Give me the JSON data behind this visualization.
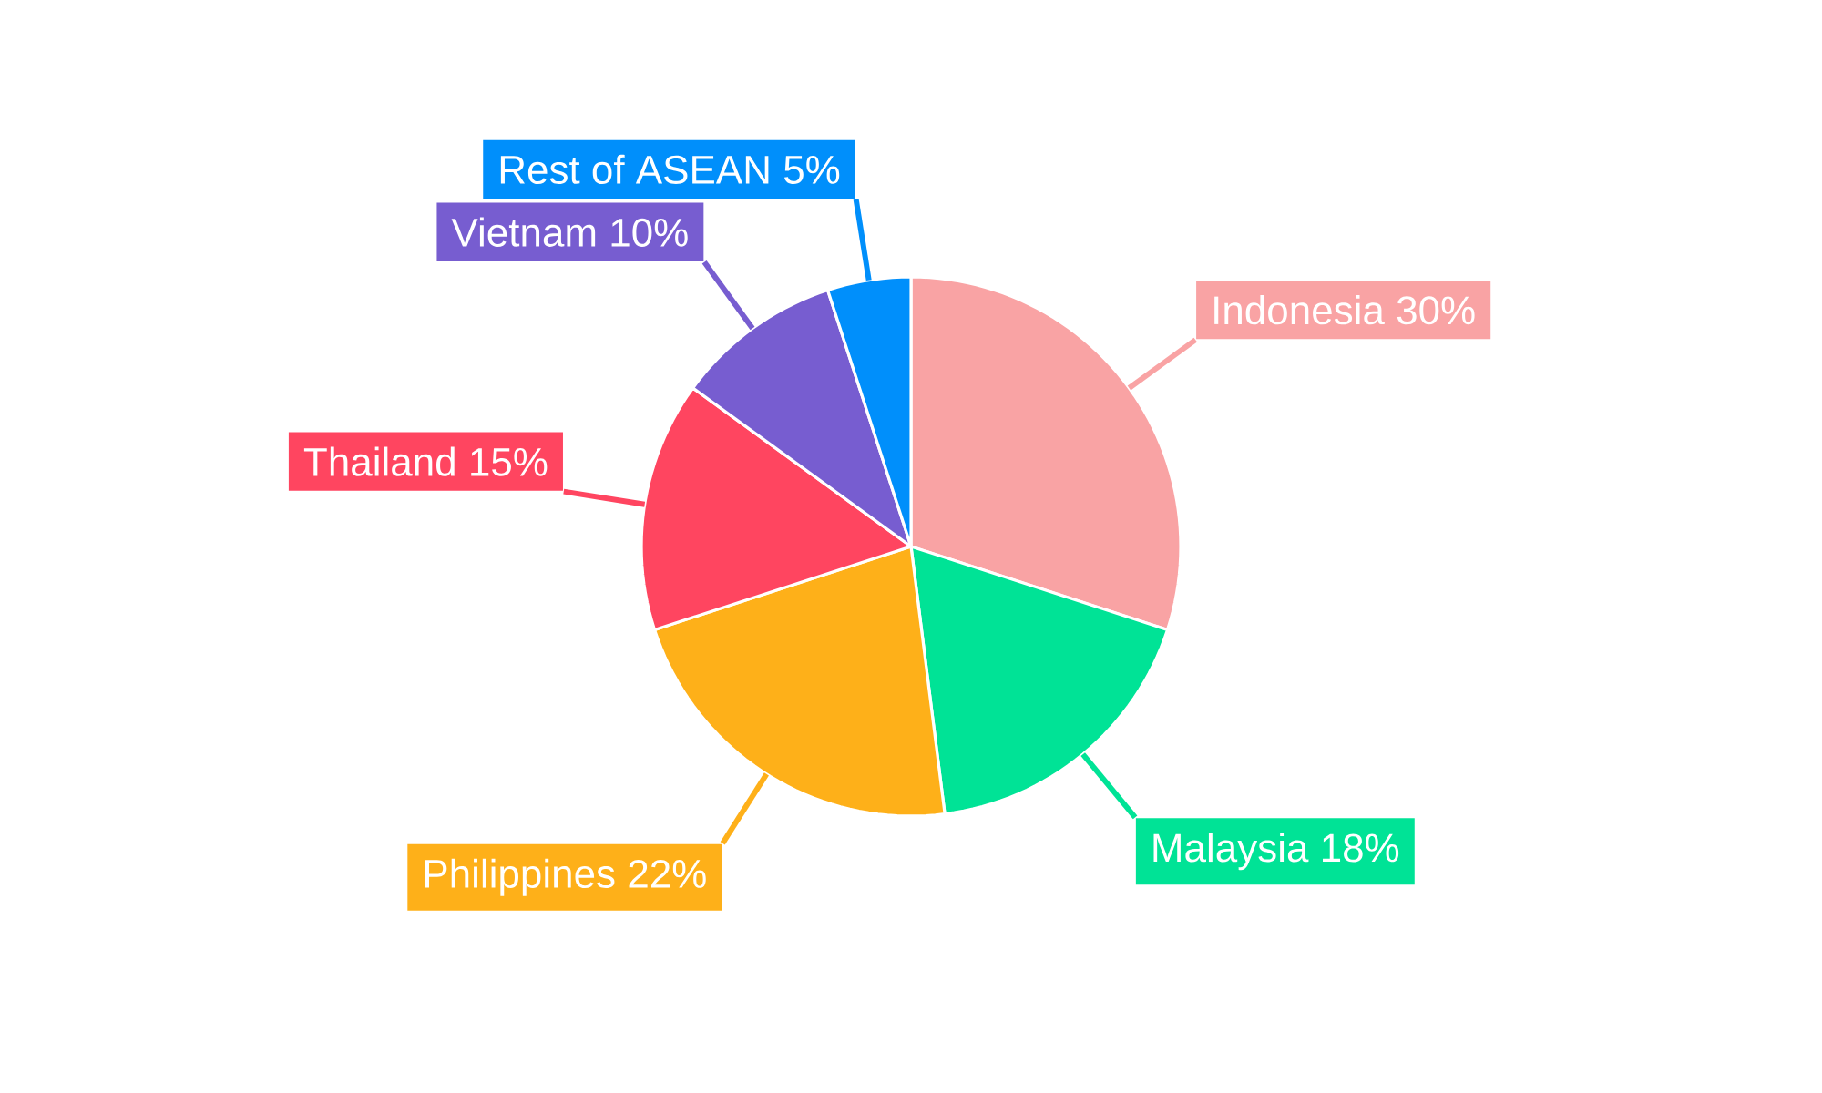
{
  "chart_data": {
    "type": "pie",
    "categories": [
      "Indonesia",
      "Malaysia",
      "Philippines",
      "Thailand",
      "Vietnam",
      "Rest of ASEAN"
    ],
    "values": [
      30,
      18,
      22,
      15,
      10,
      5
    ],
    "value_labels": [
      "30%",
      "18%",
      "22%",
      "15%",
      "10%",
      "5%"
    ],
    "colors": [
      "#f9a3a4",
      "#00e396",
      "#feb019",
      "#ff4560",
      "#775dd0",
      "#008ffb"
    ]
  }
}
